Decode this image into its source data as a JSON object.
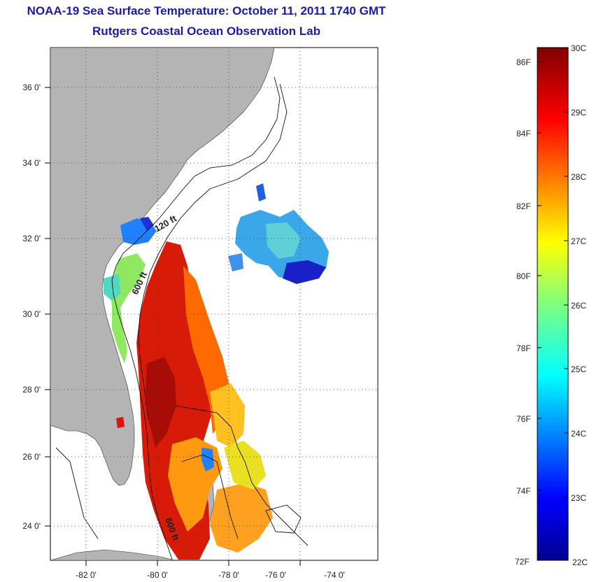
{
  "title": {
    "line1": "NOAA-19 Sea Surface Temperature:  October 11, 2011 1740 GMT",
    "line2": "Rutgers Coastal Ocean Observation Lab"
  },
  "map": {
    "lon_labels": [
      "-82 0'",
      "-80 0'",
      "-78 0'",
      "-76 0'",
      "-74 0'"
    ],
    "lat_labels": [
      "36 0'",
      "34 0'",
      "32 0'",
      "30 0'",
      "28 0'",
      "26 0'",
      "24 0'"
    ],
    "isobath_labels": [
      "120 ft",
      "600 ft",
      "600 ft"
    ],
    "land_color": "#b4b4b4",
    "gridlines": "dotted"
  },
  "colorbar": {
    "fahrenheit_labels": [
      "86F",
      "84F",
      "82F",
      "80F",
      "78F",
      "76F",
      "74F",
      "72F"
    ],
    "celsius_labels": [
      "30C",
      "29C",
      "28C",
      "27C",
      "26C",
      "25C",
      "24C",
      "23C",
      "22C"
    ],
    "colormap": "jet",
    "range_c": [
      22,
      30
    ]
  }
}
